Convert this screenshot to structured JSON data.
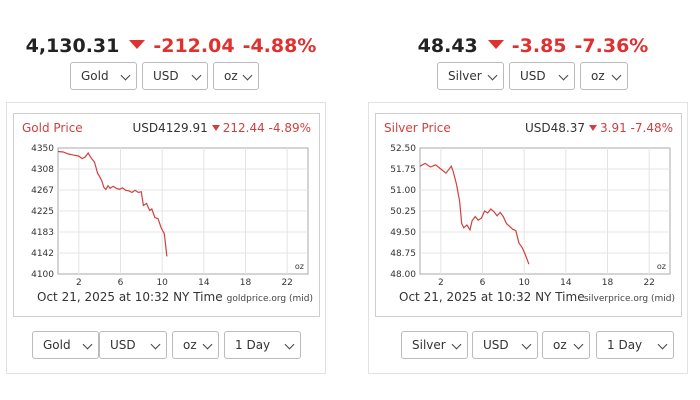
{
  "gold": {
    "header": {
      "price": "4,130.31",
      "change": "-212.04",
      "pct": "-4.88%"
    },
    "top_selects": {
      "metal": "Gold",
      "currency": "USD",
      "unit": "oz"
    },
    "chart": {
      "title": "Gold Price",
      "quote": "USD4129.91",
      "change": "212.44",
      "pct": "-4.89%",
      "timestamp": "Oct 21, 2025 at 10:32 NY Time",
      "source": "goldprice.org (mid)",
      "unit_label": "oz"
    },
    "bottom_selects": {
      "metal": "Gold",
      "currency": "USD",
      "unit": "oz",
      "range": "1 Day"
    }
  },
  "silver": {
    "header": {
      "price": "48.43",
      "change": "-3.85",
      "pct": "-7.36%"
    },
    "top_selects": {
      "metal": "Silver",
      "currency": "USD",
      "unit": "oz"
    },
    "chart": {
      "title": "Silver Price",
      "quote": "USD48.37",
      "change": "3.91",
      "pct": "-7.48%",
      "timestamp": "Oct 21, 2025 at 10:32 NY Time",
      "source": "silverprice.org (mid)",
      "unit_label": "oz"
    },
    "bottom_selects": {
      "metal": "Silver",
      "currency": "USD",
      "unit": "oz",
      "range": "1 Day"
    }
  },
  "colors": {
    "up_down_red": "#e03030",
    "line_red": "#d04040"
  },
  "chart_data": [
    {
      "type": "line",
      "title": "Gold Price",
      "xlabel": "",
      "ylabel": "",
      "xlim": [
        0,
        24
      ],
      "ylim": [
        4100,
        4350
      ],
      "xticks": [
        "2",
        "6",
        "10",
        "14",
        "18",
        "22"
      ],
      "yticks": [
        "4350",
        "4308",
        "4267",
        "4225",
        "4183",
        "4142",
        "4100"
      ],
      "grid": true,
      "series": [
        {
          "x": [
            0,
            0.5,
            1,
            1.5,
            2,
            2.3,
            2.6,
            2.9,
            3.0,
            3.2,
            3.5,
            3.8,
            4.0,
            4.2,
            4.4,
            4.6,
            4.8,
            5.0,
            5.3,
            5.6,
            5.9,
            6.2,
            6.5,
            6.8,
            7.1,
            7.4,
            7.7,
            8.0,
            8.2,
            8.5,
            8.8,
            9.0,
            9.3,
            9.6,
            9.9,
            10.2,
            10.45
          ],
          "y": [
            4343,
            4342,
            4338,
            4336,
            4334,
            4329,
            4332,
            4340,
            4336,
            4330,
            4322,
            4300,
            4293,
            4285,
            4272,
            4268,
            4275,
            4270,
            4274,
            4270,
            4268,
            4271,
            4266,
            4265,
            4262,
            4266,
            4262,
            4263,
            4236,
            4240,
            4226,
            4229,
            4212,
            4210,
            4192,
            4180,
            4135
          ]
        }
      ]
    },
    {
      "type": "line",
      "title": "Silver Price",
      "xlabel": "",
      "ylabel": "",
      "xlim": [
        0,
        24
      ],
      "ylim": [
        48.0,
        52.5
      ],
      "xticks": [
        "2",
        "6",
        "10",
        "14",
        "18",
        "22"
      ],
      "yticks": [
        "52.50",
        "51.75",
        "51.00",
        "50.25",
        "49.50",
        "48.75",
        "48.00"
      ],
      "grid": true,
      "series": [
        {
          "x": [
            0,
            0.5,
            1,
            1.5,
            2,
            2.5,
            3.0,
            3.2,
            3.5,
            3.8,
            4.0,
            4.2,
            4.5,
            4.8,
            5.0,
            5.3,
            5.6,
            5.9,
            6.2,
            6.5,
            6.8,
            7.1,
            7.4,
            7.7,
            8.0,
            8.3,
            8.6,
            8.9,
            9.2,
            9.5,
            9.8,
            10.1,
            10.45
          ],
          "y": [
            51.85,
            51.95,
            51.82,
            51.9,
            51.75,
            51.6,
            51.85,
            51.65,
            51.2,
            50.6,
            49.8,
            49.65,
            49.75,
            49.58,
            49.9,
            50.05,
            49.92,
            50.0,
            50.25,
            50.18,
            50.32,
            50.22,
            50.08,
            50.2,
            50.05,
            49.8,
            49.7,
            49.6,
            49.55,
            49.1,
            48.95,
            48.7,
            48.35
          ]
        }
      ]
    }
  ]
}
